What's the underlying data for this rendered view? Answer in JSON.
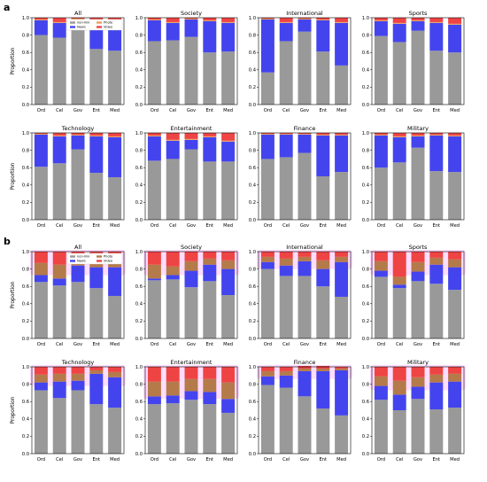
{
  "figure": {
    "panel_a_label": "a",
    "panel_b_label": "b"
  },
  "colors": {
    "non_link": "#999999",
    "news": "#4444ee",
    "photo": "#e8a060",
    "video": "#ee4444",
    "highlight": "#ff66ff",
    "photo_b": "#b57a4a"
  },
  "chart_data": [
    {
      "panel": "a",
      "title": "All",
      "type": "bar",
      "stacked": true,
      "categories": [
        "Ord",
        "Cel",
        "Gov",
        "Ent",
        "Med"
      ],
      "ylabel": "Proportion",
      "ylim": [
        0,
        1
      ],
      "yticks": [
        "0.0",
        "0.2",
        "0.4",
        "0.6",
        "0.8",
        "1.0"
      ],
      "legend": {
        "placement": "top",
        "entries": [
          "non-link",
          "News",
          "Photo",
          "Video"
        ]
      },
      "series": [
        {
          "name": "non-link",
          "values": [
            0.8,
            0.77,
            0.86,
            0.64,
            0.62
          ]
        },
        {
          "name": "News",
          "values": [
            0.17,
            0.17,
            0.12,
            0.33,
            0.3
          ]
        },
        {
          "name": "Photo",
          "values": [
            0.01,
            0.01,
            0.01,
            0.01,
            0.01
          ]
        },
        {
          "name": "Video",
          "values": [
            0.02,
            0.05,
            0.01,
            0.02,
            0.07
          ]
        }
      ]
    },
    {
      "panel": "a",
      "title": "Society",
      "type": "bar",
      "stacked": true,
      "categories": [
        "Ord",
        "Cel",
        "Gov",
        "Ent",
        "Med"
      ],
      "ylabel": "",
      "ylim": [
        0,
        1
      ],
      "yticks": [
        "0.0",
        "0.2",
        "0.4",
        "0.6",
        "0.8",
        "1.0"
      ],
      "series": [
        {
          "name": "non-link",
          "values": [
            0.73,
            0.74,
            0.78,
            0.6,
            0.61
          ]
        },
        {
          "name": "News",
          "values": [
            0.24,
            0.2,
            0.2,
            0.36,
            0.33
          ]
        },
        {
          "name": "Photo",
          "values": [
            0.01,
            0.01,
            0.01,
            0.01,
            0.01
          ]
        },
        {
          "name": "Video",
          "values": [
            0.02,
            0.05,
            0.01,
            0.03,
            0.05
          ]
        }
      ]
    },
    {
      "panel": "a",
      "title": "International",
      "type": "bar",
      "stacked": true,
      "categories": [
        "Ord",
        "Cel",
        "Gov",
        "Ent",
        "Med"
      ],
      "ylabel": "",
      "ylim": [
        0,
        1
      ],
      "yticks": [
        "0.0",
        "0.2",
        "0.4",
        "0.6",
        "0.8",
        "1.0"
      ],
      "series": [
        {
          "name": "non-link",
          "values": [
            0.37,
            0.73,
            0.84,
            0.61,
            0.45
          ]
        },
        {
          "name": "News",
          "values": [
            0.61,
            0.21,
            0.14,
            0.36,
            0.49
          ]
        },
        {
          "name": "Photo",
          "values": [
            0.01,
            0.01,
            0.01,
            0.01,
            0.01
          ]
        },
        {
          "name": "Video",
          "values": [
            0.01,
            0.05,
            0.01,
            0.02,
            0.05
          ]
        }
      ]
    },
    {
      "panel": "a",
      "title": "Sports",
      "type": "bar",
      "stacked": true,
      "categories": [
        "Ord",
        "Cel",
        "Gov",
        "Ent",
        "Med"
      ],
      "ylabel": "",
      "ylim": [
        0,
        1
      ],
      "yticks": [
        "0.0",
        "0.2",
        "0.4",
        "0.6",
        "0.8",
        "1.0"
      ],
      "series": [
        {
          "name": "non-link",
          "values": [
            0.79,
            0.72,
            0.85,
            0.62,
            0.6
          ]
        },
        {
          "name": "News",
          "values": [
            0.17,
            0.21,
            0.11,
            0.32,
            0.32
          ]
        },
        {
          "name": "Photo",
          "values": [
            0.01,
            0.01,
            0.01,
            0.01,
            0.01
          ]
        },
        {
          "name": "Video",
          "values": [
            0.03,
            0.06,
            0.03,
            0.05,
            0.07
          ]
        }
      ]
    },
    {
      "panel": "a",
      "title": "Technology",
      "type": "bar",
      "stacked": true,
      "categories": [
        "Ord",
        "Cel",
        "Gov",
        "Ent",
        "Med"
      ],
      "ylabel": "Proportion",
      "ylim": [
        0,
        1
      ],
      "yticks": [
        "0.0",
        "0.2",
        "0.4",
        "0.6",
        "0.8",
        "1.0"
      ],
      "series": [
        {
          "name": "non-link",
          "values": [
            0.61,
            0.65,
            0.81,
            0.54,
            0.49
          ]
        },
        {
          "name": "News",
          "values": [
            0.37,
            0.31,
            0.16,
            0.42,
            0.46
          ]
        },
        {
          "name": "Photo",
          "values": [
            0.01,
            0.01,
            0.01,
            0.01,
            0.01
          ]
        },
        {
          "name": "Video",
          "values": [
            0.01,
            0.03,
            0.02,
            0.03,
            0.04
          ]
        }
      ]
    },
    {
      "panel": "a",
      "title": "Entertainment",
      "type": "bar",
      "stacked": true,
      "categories": [
        "Ord",
        "Cel",
        "Gov",
        "Ent",
        "Med"
      ],
      "ylabel": "",
      "ylim": [
        0,
        1
      ],
      "yticks": [
        "0.0",
        "0.2",
        "0.4",
        "0.6",
        "0.8",
        "1.0"
      ],
      "series": [
        {
          "name": "non-link",
          "values": [
            0.68,
            0.7,
            0.81,
            0.67,
            0.67
          ]
        },
        {
          "name": "News",
          "values": [
            0.28,
            0.21,
            0.11,
            0.28,
            0.23
          ]
        },
        {
          "name": "Photo",
          "values": [
            0.01,
            0.01,
            0.01,
            0.01,
            0.01
          ]
        },
        {
          "name": "Video",
          "values": [
            0.03,
            0.08,
            0.07,
            0.04,
            0.09
          ]
        }
      ]
    },
    {
      "panel": "a",
      "title": "Finance",
      "type": "bar",
      "stacked": true,
      "categories": [
        "Ord",
        "Cel",
        "Gov",
        "Ent",
        "Med"
      ],
      "ylabel": "",
      "ylim": [
        0,
        1
      ],
      "yticks": [
        "0.0",
        "0.2",
        "0.4",
        "0.6",
        "0.8",
        "1.0"
      ],
      "series": [
        {
          "name": "non-link",
          "values": [
            0.7,
            0.72,
            0.77,
            0.5,
            0.55
          ]
        },
        {
          "name": "News",
          "values": [
            0.28,
            0.26,
            0.21,
            0.47,
            0.42
          ]
        },
        {
          "name": "Photo",
          "values": [
            0.01,
            0.01,
            0.01,
            0.01,
            0.01
          ]
        },
        {
          "name": "Video",
          "values": [
            0.01,
            0.01,
            0.01,
            0.02,
            0.02
          ]
        }
      ]
    },
    {
      "panel": "a",
      "title": "Military",
      "type": "bar",
      "stacked": true,
      "categories": [
        "Ord",
        "Cel",
        "Gov",
        "Ent",
        "Med"
      ],
      "ylabel": "",
      "ylim": [
        0,
        1
      ],
      "yticks": [
        "0.0",
        "0.2",
        "0.4",
        "0.6",
        "0.8",
        "1.0"
      ],
      "series": [
        {
          "name": "non-link",
          "values": [
            0.6,
            0.66,
            0.83,
            0.56,
            0.55
          ]
        },
        {
          "name": "News",
          "values": [
            0.37,
            0.29,
            0.13,
            0.41,
            0.41
          ]
        },
        {
          "name": "Photo",
          "values": [
            0.01,
            0.01,
            0.01,
            0.01,
            0.01
          ]
        },
        {
          "name": "Video",
          "values": [
            0.02,
            0.04,
            0.03,
            0.02,
            0.03
          ]
        }
      ]
    },
    {
      "panel": "b",
      "title": "All",
      "type": "bar",
      "stacked": true,
      "categories": [
        "Ord",
        "Cel",
        "Gov",
        "Ent",
        "Med"
      ],
      "ylabel": "Proportion",
      "ylim": [
        0,
        1
      ],
      "yticks": [
        "0.0",
        "0.2",
        "0.4",
        "0.6",
        "0.8",
        "1.0"
      ],
      "highlight_band": [
        0.75,
        1.0
      ],
      "legend": {
        "placement": "top",
        "entries": [
          "non-link",
          "News",
          "Photo",
          "Video"
        ]
      },
      "series": [
        {
          "name": "non-link",
          "values": [
            0.65,
            0.61,
            0.65,
            0.58,
            0.49
          ]
        },
        {
          "name": "News",
          "values": [
            0.08,
            0.08,
            0.19,
            0.24,
            0.33
          ]
        },
        {
          "name": "Photo",
          "values": [
            0.14,
            0.16,
            0.08,
            0.09,
            0.09
          ]
        },
        {
          "name": "Video",
          "values": [
            0.13,
            0.15,
            0.08,
            0.09,
            0.09
          ]
        }
      ]
    },
    {
      "panel": "b",
      "title": "Society",
      "type": "bar",
      "stacked": true,
      "categories": [
        "Ord",
        "Cel",
        "Gov",
        "Ent",
        "Med"
      ],
      "ylabel": "",
      "ylim": [
        0,
        1
      ],
      "yticks": [
        "0.0",
        "0.2",
        "0.4",
        "0.6",
        "0.8",
        "1.0"
      ],
      "highlight_band": [
        0.75,
        1.0
      ],
      "series": [
        {
          "name": "non-link",
          "values": [
            0.67,
            0.68,
            0.59,
            0.66,
            0.5
          ]
        },
        {
          "name": "News",
          "values": [
            0.02,
            0.05,
            0.19,
            0.19,
            0.3
          ]
        },
        {
          "name": "Photo",
          "values": [
            0.16,
            0.1,
            0.11,
            0.07,
            0.1
          ]
        },
        {
          "name": "Video",
          "values": [
            0.15,
            0.17,
            0.11,
            0.08,
            0.1
          ]
        }
      ]
    },
    {
      "panel": "b",
      "title": "International",
      "type": "bar",
      "stacked": true,
      "categories": [
        "Ord",
        "Cel",
        "Gov",
        "Ent",
        "Med"
      ],
      "ylabel": "",
      "ylim": [
        0,
        1
      ],
      "yticks": [
        "0.0",
        "0.2",
        "0.4",
        "0.6",
        "0.8",
        "1.0"
      ],
      "highlight_band": [
        0.82,
        1.0
      ],
      "series": [
        {
          "name": "non-link",
          "values": [
            0.8,
            0.72,
            0.72,
            0.6,
            0.48
          ]
        },
        {
          "name": "News",
          "values": [
            0.08,
            0.12,
            0.17,
            0.2,
            0.4
          ]
        },
        {
          "name": "Photo",
          "values": [
            0.06,
            0.08,
            0.05,
            0.1,
            0.06
          ]
        },
        {
          "name": "Video",
          "values": [
            0.06,
            0.08,
            0.06,
            0.1,
            0.06
          ]
        }
      ]
    },
    {
      "panel": "b",
      "title": "Sports",
      "type": "bar",
      "stacked": true,
      "categories": [
        "Ord",
        "Cel",
        "Gov",
        "Ent",
        "Med"
      ],
      "ylabel": "",
      "ylim": [
        0,
        1
      ],
      "yticks": [
        "0.0",
        "0.2",
        "0.4",
        "0.6",
        "0.8",
        "1.0"
      ],
      "highlight_band": [
        0.75,
        1.0
      ],
      "series": [
        {
          "name": "non-link",
          "values": [
            0.71,
            0.58,
            0.66,
            0.63,
            0.56
          ]
        },
        {
          "name": "News",
          "values": [
            0.07,
            0.04,
            0.11,
            0.22,
            0.26
          ]
        },
        {
          "name": "Photo",
          "values": [
            0.11,
            0.09,
            0.11,
            0.08,
            0.09
          ]
        },
        {
          "name": "Video",
          "values": [
            0.11,
            0.29,
            0.12,
            0.07,
            0.09
          ]
        }
      ]
    },
    {
      "panel": "b",
      "title": "Technology",
      "type": "bar",
      "stacked": true,
      "categories": [
        "Ord",
        "Cel",
        "Gov",
        "Ent",
        "Med"
      ],
      "ylabel": "Proportion",
      "ylim": [
        0,
        1
      ],
      "yticks": [
        "0.0",
        "0.2",
        "0.4",
        "0.6",
        "0.8",
        "1.0"
      ],
      "highlight_band": [
        0.8,
        1.0
      ],
      "series": [
        {
          "name": "non-link",
          "values": [
            0.73,
            0.64,
            0.73,
            0.57,
            0.53
          ]
        },
        {
          "name": "News",
          "values": [
            0.09,
            0.19,
            0.11,
            0.35,
            0.35
          ]
        },
        {
          "name": "Photo",
          "values": [
            0.09,
            0.09,
            0.08,
            0.04,
            0.06
          ]
        },
        {
          "name": "Video",
          "values": [
            0.09,
            0.08,
            0.08,
            0.04,
            0.06
          ]
        }
      ]
    },
    {
      "panel": "b",
      "title": "Entertainment",
      "type": "bar",
      "stacked": true,
      "categories": [
        "Ord",
        "Cel",
        "Gov",
        "Ent",
        "Med"
      ],
      "ylabel": "",
      "ylim": [
        0,
        1
      ],
      "yticks": [
        "0.0",
        "0.2",
        "0.4",
        "0.6",
        "0.8",
        "1.0"
      ],
      "highlight_band": [
        0.65,
        1.0
      ],
      "series": [
        {
          "name": "non-link",
          "values": [
            0.57,
            0.58,
            0.62,
            0.57,
            0.47
          ]
        },
        {
          "name": "News",
          "values": [
            0.09,
            0.09,
            0.1,
            0.14,
            0.16
          ]
        },
        {
          "name": "Photo",
          "values": [
            0.17,
            0.16,
            0.14,
            0.15,
            0.19
          ]
        },
        {
          "name": "Video",
          "values": [
            0.17,
            0.17,
            0.14,
            0.14,
            0.18
          ]
        }
      ]
    },
    {
      "panel": "b",
      "title": "Finance",
      "type": "bar",
      "stacked": true,
      "categories": [
        "Ord",
        "Cel",
        "Gov",
        "Ent",
        "Med"
      ],
      "ylabel": "",
      "ylim": [
        0,
        1
      ],
      "yticks": [
        "0.0",
        "0.2",
        "0.4",
        "0.6",
        "0.8",
        "1.0"
      ],
      "highlight_band": [
        0.88,
        1.0
      ],
      "series": [
        {
          "name": "non-link",
          "values": [
            0.79,
            0.76,
            0.66,
            0.52,
            0.44
          ]
        },
        {
          "name": "News",
          "values": [
            0.1,
            0.14,
            0.29,
            0.43,
            0.52
          ]
        },
        {
          "name": "Photo",
          "values": [
            0.06,
            0.05,
            0.03,
            0.03,
            0.02
          ]
        },
        {
          "name": "Video",
          "values": [
            0.05,
            0.05,
            0.03,
            0.03,
            0.02
          ]
        }
      ]
    },
    {
      "panel": "b",
      "title": "Military",
      "type": "bar",
      "stacked": true,
      "categories": [
        "Ord",
        "Cel",
        "Gov",
        "Ent",
        "Med"
      ],
      "ylabel": "",
      "ylim": [
        0,
        1
      ],
      "yticks": [
        "0.0",
        "0.2",
        "0.4",
        "0.6",
        "0.8",
        "1.0"
      ],
      "highlight_band": [
        0.75,
        1.0
      ],
      "series": [
        {
          "name": "non-link",
          "values": [
            0.62,
            0.5,
            0.63,
            0.51,
            0.53
          ]
        },
        {
          "name": "News",
          "values": [
            0.16,
            0.18,
            0.14,
            0.31,
            0.3
          ]
        },
        {
          "name": "Photo",
          "values": [
            0.11,
            0.16,
            0.11,
            0.09,
            0.09
          ]
        },
        {
          "name": "Video",
          "values": [
            0.11,
            0.16,
            0.12,
            0.09,
            0.08
          ]
        }
      ]
    }
  ]
}
